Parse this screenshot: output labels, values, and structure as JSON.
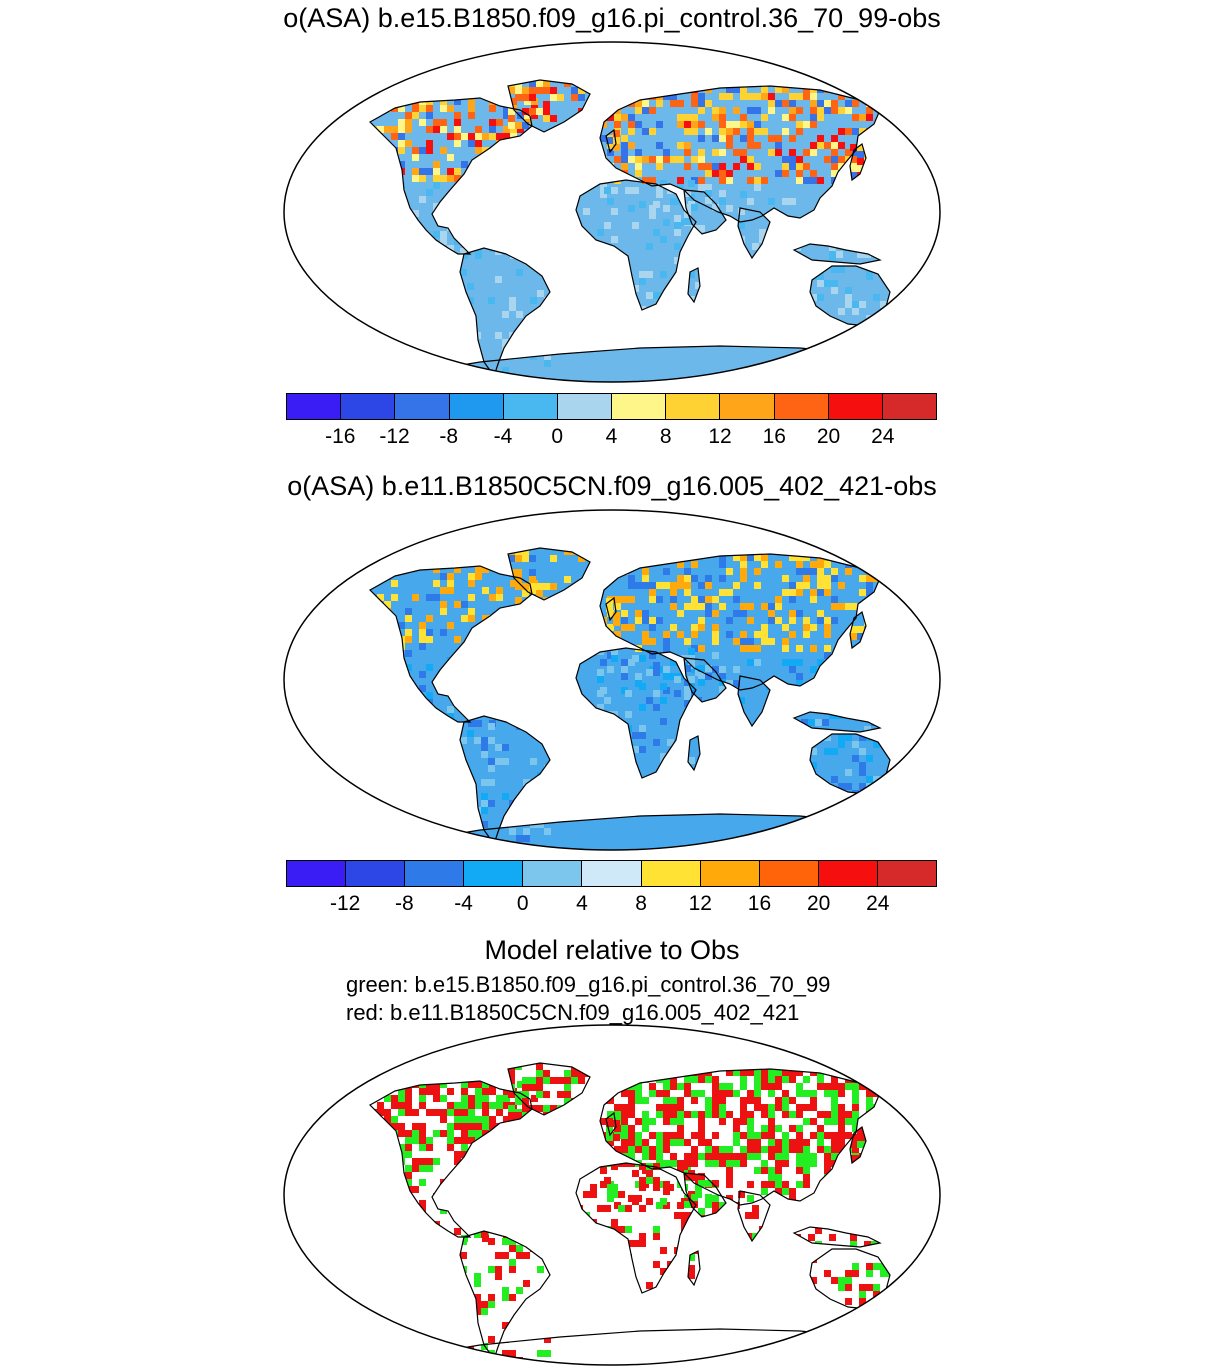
{
  "panel1": {
    "title": "o(ASA) b.e15.B1850.f09_g16.pi_control.36_70_99-obs",
    "colorbar": {
      "colors": [
        "#3a1cf5",
        "#2d46e6",
        "#3474e8",
        "#1f98f0",
        "#4ab8f0",
        "#a9d6ee",
        "#fff68a",
        "#ffd234",
        "#ffa51a",
        "#ff6414",
        "#f50f0f",
        "#d62a2a"
      ],
      "ticks": [
        "-16",
        "-12",
        "-8",
        "-4",
        "0",
        "4",
        "8",
        "12",
        "16",
        "20",
        "24"
      ]
    }
  },
  "panel2": {
    "title": "o(ASA) b.e11.B1850C5CN.f09_g16.005_402_421-obs",
    "colorbar": {
      "colors": [
        "#3a1cf5",
        "#2d46e6",
        "#2e7ae8",
        "#12aaf5",
        "#7cc6ee",
        "#cfe9f8",
        "#ffe233",
        "#ffaa0a",
        "#ff640a",
        "#f50f0f",
        "#d62a2a"
      ],
      "ticks": [
        "-12",
        "-8",
        "-4",
        "0",
        "4",
        "8",
        "12",
        "16",
        "20",
        "24"
      ]
    }
  },
  "panel3": {
    "title": "Model relative to Obs",
    "green_label": "green: b.e15.B1850.f09_g16.pi_control.36_70_99",
    "red_label": "red: b.e11.B1850C5CN.f09_g16.005_402_421"
  },
  "colors": {
    "ocean": "#ffffff",
    "land_panel1": "#6cb8ea",
    "land_panel2": "#48a8ec",
    "green": "#22ee22",
    "red": "#ee1111"
  }
}
